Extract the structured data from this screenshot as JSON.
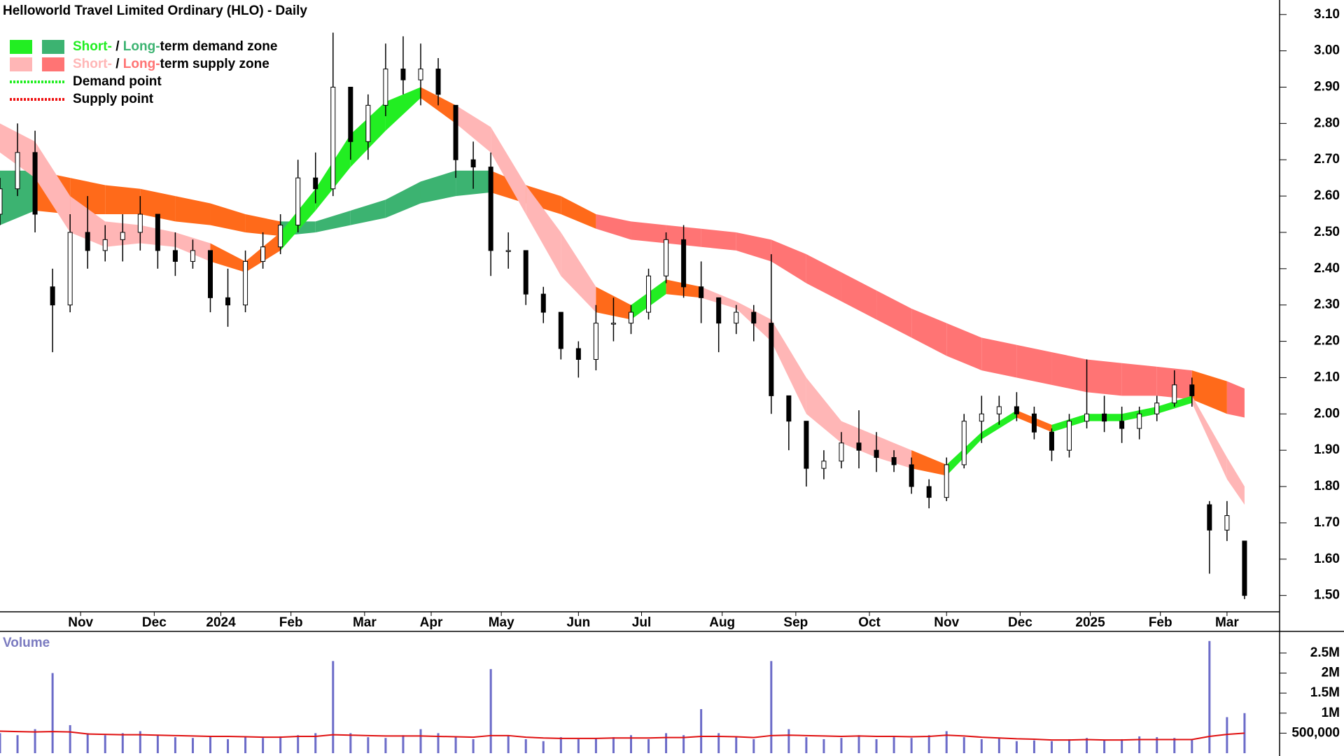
{
  "chart_data": [
    {
      "type": "candlestick",
      "title": "Helloworld Travel Limited Ordinary (HLO) - Daily",
      "x": [
        0,
        5,
        10,
        15,
        20,
        25,
        30,
        35,
        40,
        45,
        50,
        55,
        60,
        65,
        70,
        75,
        80,
        85,
        90,
        95,
        100,
        105,
        110,
        115,
        120,
        125,
        130,
        135,
        140,
        145,
        150,
        155,
        160,
        165,
        170,
        175,
        180,
        185,
        190,
        195,
        200,
        205,
        210,
        215,
        220,
        225,
        230,
        235,
        240,
        245,
        250,
        255,
        260,
        265,
        270,
        275,
        280,
        285,
        290,
        295,
        300,
        305,
        310,
        315,
        320,
        325,
        330,
        335,
        340,
        345,
        350,
        355
      ],
      "open": [
        2.55,
        2.62,
        2.72,
        2.35,
        2.3,
        2.5,
        2.45,
        2.48,
        2.5,
        2.55,
        2.45,
        2.42,
        2.45,
        2.32,
        2.3,
        2.42,
        2.46,
        2.52,
        2.65,
        2.62,
        2.9,
        2.75,
        2.85,
        2.95,
        2.92,
        2.95,
        2.85,
        2.7,
        2.68,
        2.45,
        2.45,
        2.33,
        2.28,
        2.18,
        2.15,
        2.25,
        2.25,
        2.28,
        2.38,
        2.48,
        2.35,
        2.32,
        2.25,
        2.28,
        2.25,
        2.05,
        1.98,
        1.85,
        1.87,
        1.92,
        1.9,
        1.88,
        1.86,
        1.8,
        1.77,
        1.86,
        1.98,
        2.0,
        2.02,
        2.0,
        1.95,
        1.9,
        1.98,
        2.0,
        1.98,
        1.96,
        2.0,
        2.03,
        2.08,
        1.75,
        1.68,
        1.65
      ],
      "high": [
        2.65,
        2.8,
        2.78,
        2.4,
        2.55,
        2.6,
        2.52,
        2.55,
        2.6,
        2.55,
        2.5,
        2.48,
        2.45,
        2.4,
        2.45,
        2.5,
        2.55,
        2.7,
        2.72,
        3.05,
        2.9,
        2.88,
        3.02,
        3.04,
        3.02,
        2.98,
        2.85,
        2.75,
        2.72,
        2.5,
        2.45,
        2.35,
        2.28,
        2.2,
        2.3,
        2.32,
        2.3,
        2.4,
        2.5,
        2.52,
        2.42,
        2.32,
        2.3,
        2.3,
        2.44,
        2.05,
        1.98,
        1.9,
        1.95,
        2.01,
        1.95,
        1.9,
        1.88,
        1.82,
        1.88,
        2.0,
        2.05,
        2.05,
        2.06,
        2.02,
        1.96,
        2.0,
        2.15,
        2.05,
        2.02,
        2.02,
        2.05,
        2.12,
        2.1,
        1.76,
        1.76,
        1.65
      ],
      "low": [
        2.52,
        2.6,
        2.5,
        2.17,
        2.28,
        2.4,
        2.42,
        2.42,
        2.45,
        2.4,
        2.38,
        2.4,
        2.28,
        2.24,
        2.28,
        2.4,
        2.44,
        2.5,
        2.58,
        2.6,
        2.7,
        2.7,
        2.82,
        2.88,
        2.85,
        2.85,
        2.65,
        2.62,
        2.38,
        2.4,
        2.3,
        2.25,
        2.15,
        2.1,
        2.12,
        2.2,
        2.22,
        2.26,
        2.36,
        2.32,
        2.25,
        2.17,
        2.22,
        2.2,
        2.0,
        1.9,
        1.8,
        1.82,
        1.85,
        1.85,
        1.84,
        1.84,
        1.78,
        1.74,
        1.76,
        1.85,
        1.92,
        1.97,
        1.98,
        1.93,
        1.87,
        1.88,
        1.96,
        1.95,
        1.92,
        1.93,
        1.98,
        2.02,
        2.02,
        1.56,
        1.65,
        1.49
      ],
      "close": [
        2.62,
        2.72,
        2.55,
        2.3,
        2.5,
        2.45,
        2.48,
        2.5,
        2.55,
        2.45,
        2.42,
        2.45,
        2.32,
        2.3,
        2.42,
        2.46,
        2.52,
        2.65,
        2.62,
        2.9,
        2.75,
        2.85,
        2.95,
        2.92,
        2.95,
        2.88,
        2.7,
        2.68,
        2.45,
        2.45,
        2.33,
        2.28,
        2.18,
        2.15,
        2.25,
        2.25,
        2.28,
        2.38,
        2.48,
        2.35,
        2.32,
        2.25,
        2.28,
        2.25,
        2.05,
        1.98,
        1.85,
        1.87,
        1.92,
        1.9,
        1.88,
        1.86,
        1.8,
        1.77,
        1.86,
        1.98,
        2.0,
        2.02,
        2.0,
        1.95,
        1.9,
        1.98,
        2.0,
        1.98,
        1.96,
        2.0,
        2.03,
        2.08,
        2.05,
        1.68,
        1.72,
        1.5
      ],
      "bands": [
        {
          "x": [
            0,
            10,
            20,
            30,
            40,
            50,
            60,
            70,
            80,
            90,
            100,
            110,
            120,
            130,
            140,
            150,
            160,
            170,
            180,
            190,
            200,
            210,
            220,
            230,
            240,
            250,
            260,
            270,
            280,
            290,
            300,
            310,
            320,
            330,
            340,
            350,
            355
          ],
          "lower": [
            2.52,
            2.56,
            2.55,
            2.55,
            2.55,
            2.53,
            2.52,
            2.5,
            2.49,
            2.5,
            2.52,
            2.54,
            2.58,
            2.6,
            2.61,
            2.58,
            2.55,
            2.51,
            2.48,
            2.47,
            2.46,
            2.45,
            2.42,
            2.36,
            2.31,
            2.26,
            2.21,
            2.16,
            2.12,
            2.1,
            2.08,
            2.06,
            2.05,
            2.05,
            2.04,
            2.0,
            1.99
          ],
          "upper": [
            2.67,
            2.67,
            2.65,
            2.63,
            2.62,
            2.6,
            2.58,
            2.55,
            2.53,
            2.53,
            2.56,
            2.59,
            2.64,
            2.67,
            2.67,
            2.63,
            2.6,
            2.55,
            2.53,
            2.52,
            2.51,
            2.5,
            2.48,
            2.44,
            2.39,
            2.34,
            2.29,
            2.25,
            2.21,
            2.19,
            2.17,
            2.15,
            2.14,
            2.13,
            2.12,
            2.09,
            2.07
          ],
          "segment_colors": [
            "#3cb371",
            "#ff6a1a",
            "#ff6a1a",
            "#ff6a1a",
            "#ff6a1a",
            "#ff6a1a",
            "#ff6a1a",
            "#ff6a1a",
            "#3cb371",
            "#3cb371",
            "#3cb371",
            "#3cb371",
            "#3cb371",
            "#3cb371",
            "#ff6a1a",
            "#ff6a1a",
            "#ff6a1a",
            "#ff7474",
            "#ff7474",
            "#ff7474",
            "#ff7474",
            "#ff7474",
            "#ff7474",
            "#ff7474",
            "#ff7474",
            "#ff7474",
            "#ff7474",
            "#ff7474",
            "#ff7474",
            "#ff7474",
            "#ff7474",
            "#ff7474",
            "#ff7474",
            "#ff7474",
            "#ff6a1a",
            "#ff7474"
          ]
        },
        {
          "x": [
            0,
            10,
            20,
            30,
            40,
            50,
            60,
            70,
            80,
            90,
            100,
            110,
            120,
            130,
            140,
            150,
            160,
            170,
            180,
            190,
            200,
            210,
            220,
            230,
            240,
            250,
            260,
            270,
            280,
            290,
            300,
            310,
            320,
            330,
            340,
            350,
            355
          ],
          "lower": [
            2.72,
            2.65,
            2.5,
            2.46,
            2.47,
            2.46,
            2.42,
            2.39,
            2.45,
            2.56,
            2.68,
            2.78,
            2.87,
            2.8,
            2.72,
            2.55,
            2.38,
            2.28,
            2.26,
            2.33,
            2.32,
            2.29,
            2.2,
            2.0,
            1.92,
            1.88,
            1.85,
            1.83,
            1.93,
            1.99,
            1.95,
            1.98,
            1.98,
            2.0,
            2.03,
            1.82,
            1.75
          ],
          "upper": [
            2.8,
            2.75,
            2.6,
            2.53,
            2.52,
            2.5,
            2.47,
            2.42,
            2.5,
            2.62,
            2.77,
            2.86,
            2.9,
            2.85,
            2.79,
            2.63,
            2.5,
            2.35,
            2.3,
            2.37,
            2.35,
            2.31,
            2.26,
            2.1,
            1.98,
            1.94,
            1.9,
            1.86,
            1.95,
            2.01,
            1.97,
            2.0,
            2.0,
            2.02,
            2.05,
            1.88,
            1.8
          ],
          "segment_colors": [
            "#ffb6b6",
            "#ffb6b6",
            "#ffb6b6",
            "#ffb6b6",
            "#ffb6b6",
            "#ffb6b6",
            "#ff6a1a",
            "#ff6a1a",
            "#22ee22",
            "#22ee22",
            "#22ee22",
            "#22ee22",
            "#ff6a1a",
            "#ffb6b6",
            "#ffb6b6",
            "#ffb6b6",
            "#ffb6b6",
            "#ff6a1a",
            "#22ee22",
            "#ff6a1a",
            "#ffb6b6",
            "#ffb6b6",
            "#ffb6b6",
            "#ffb6b6",
            "#ffb6b6",
            "#ffb6b6",
            "#ff6a1a",
            "#22ee22",
            "#22ee22",
            "#ff6a1a",
            "#22ee22",
            "#22ee22",
            "#22ee22",
            "#22ee22",
            "#ffb6b6",
            "#ffb6b6"
          ]
        }
      ],
      "legend": [
        {
          "swatches": [
            "#22ee22",
            "#3cb371"
          ],
          "parts": [
            {
              "text": "Short-",
              "color": "#22ee22"
            },
            {
              "text": " / ",
              "color": "#000000"
            },
            {
              "text": "Long-",
              "color": "#3cb371"
            },
            {
              "text": "term demand zone",
              "color": "#000000"
            }
          ]
        },
        {
          "swatches": [
            "#ffb6b6",
            "#ff7474"
          ],
          "parts": [
            {
              "text": "Short-",
              "color": "#ffb6b6"
            },
            {
              "text": " / ",
              "color": "#000000"
            },
            {
              "text": "Long-",
              "color": "#ff7474"
            },
            {
              "text": "term supply zone",
              "color": "#000000"
            }
          ]
        },
        {
          "line": "#22ee22",
          "parts": [
            {
              "text": "Demand point",
              "color": "#000000"
            }
          ]
        },
        {
          "line": "#ee1111",
          "parts": [
            {
              "text": "Supply point",
              "color": "#000000"
            }
          ]
        }
      ],
      "xlim": [
        0,
        365
      ],
      "xticks": [
        {
          "value": 23,
          "label": "Nov"
        },
        {
          "value": 44,
          "label": "Dec"
        },
        {
          "value": 63,
          "label": "2024"
        },
        {
          "value": 83,
          "label": "Feb"
        },
        {
          "value": 104,
          "label": "Mar"
        },
        {
          "value": 123,
          "label": "Apr"
        },
        {
          "value": 143,
          "label": "May"
        },
        {
          "value": 165,
          "label": "Jun"
        },
        {
          "value": 183,
          "label": "Jul"
        },
        {
          "value": 206,
          "label": "Aug"
        },
        {
          "value": 227,
          "label": "Sep"
        },
        {
          "value": 248,
          "label": "Oct"
        },
        {
          "value": 270,
          "label": "Nov"
        },
        {
          "value": 291,
          "label": "Dec"
        },
        {
          "value": 311,
          "label": "2025"
        },
        {
          "value": 331,
          "label": "Feb"
        },
        {
          "value": 350,
          "label": "Mar"
        }
      ],
      "ylim": [
        1.455,
        3.14
      ],
      "yticks": [
        {
          "value": 1.5,
          "label": "1.50"
        },
        {
          "value": 1.6,
          "label": "1.60"
        },
        {
          "value": 1.7,
          "label": "1.70"
        },
        {
          "value": 1.8,
          "label": "1.80"
        },
        {
          "value": 1.9,
          "label": "1.90"
        },
        {
          "value": 2.0,
          "label": "2.00"
        },
        {
          "value": 2.1,
          "label": "2.10"
        },
        {
          "value": 2.2,
          "label": "2.20"
        },
        {
          "value": 2.3,
          "label": "2.30"
        },
        {
          "value": 2.4,
          "label": "2.40"
        },
        {
          "value": 2.5,
          "label": "2.50"
        },
        {
          "value": 2.6,
          "label": "2.60"
        },
        {
          "value": 2.7,
          "label": "2.70"
        },
        {
          "value": 2.8,
          "label": "2.80"
        },
        {
          "value": 2.9,
          "label": "2.90"
        },
        {
          "value": 3.0,
          "label": "3.00"
        },
        {
          "value": 3.1,
          "label": "3.10"
        }
      ]
    },
    {
      "type": "bar",
      "title": "Volume",
      "x": [
        0,
        5,
        10,
        15,
        20,
        25,
        30,
        35,
        40,
        45,
        50,
        55,
        60,
        65,
        70,
        75,
        80,
        85,
        90,
        95,
        100,
        105,
        110,
        115,
        120,
        125,
        130,
        135,
        140,
        145,
        150,
        155,
        160,
        165,
        170,
        175,
        180,
        185,
        190,
        195,
        200,
        205,
        210,
        215,
        220,
        225,
        230,
        235,
        240,
        245,
        250,
        255,
        260,
        265,
        270,
        275,
        280,
        285,
        290,
        295,
        300,
        305,
        310,
        315,
        320,
        325,
        330,
        335,
        340,
        345,
        350,
        355
      ],
      "series": [
        {
          "color": "#6b6bc8",
          "values": [
            500000,
            450000,
            600000,
            2000000,
            700000,
            500000,
            450000,
            500000,
            550000,
            450000,
            400000,
            380000,
            420000,
            350000,
            400000,
            380000,
            420000,
            450000,
            500000,
            2300000,
            500000,
            400000,
            380000,
            450000,
            600000,
            500000,
            400000,
            350000,
            2100000,
            450000,
            350000,
            300000,
            400000,
            350000,
            380000,
            400000,
            450000,
            350000,
            500000,
            450000,
            1100000,
            500000,
            400000,
            350000,
            2300000,
            600000,
            400000,
            350000,
            380000,
            450000,
            350000,
            400000,
            380000,
            450000,
            550000,
            400000,
            350000,
            380000,
            300000,
            320000,
            300000,
            350000,
            380000,
            320000,
            350000,
            420000,
            400000,
            380000,
            350000,
            2800000,
            900000,
            1000000
          ]
        },
        {
          "color": "#e01010",
          "line": true,
          "values": [
            550000,
            540000,
            530000,
            540000,
            530000,
            480000,
            470000,
            460000,
            460000,
            450000,
            440000,
            430000,
            420000,
            420000,
            410000,
            400000,
            400000,
            420000,
            420000,
            460000,
            450000,
            440000,
            430000,
            430000,
            430000,
            420000,
            410000,
            400000,
            440000,
            440000,
            400000,
            380000,
            370000,
            370000,
            370000,
            380000,
            380000,
            380000,
            390000,
            390000,
            420000,
            420000,
            410000,
            390000,
            440000,
            450000,
            440000,
            430000,
            420000,
            430000,
            420000,
            420000,
            410000,
            420000,
            450000,
            430000,
            400000,
            380000,
            360000,
            350000,
            330000,
            330000,
            340000,
            330000,
            330000,
            340000,
            340000,
            340000,
            340000,
            420000,
            470000,
            500000
          ]
        }
      ],
      "xlim": [
        0,
        365
      ],
      "ylim": [
        0,
        3040000
      ],
      "yticks": [
        {
          "value": 500000,
          "label": "500,000"
        },
        {
          "value": 1000000,
          "label": "1M"
        },
        {
          "value": 1500000,
          "label": "1.5M"
        },
        {
          "value": 2000000,
          "label": "2M"
        },
        {
          "value": 2500000,
          "label": "2.5M"
        }
      ]
    }
  ]
}
